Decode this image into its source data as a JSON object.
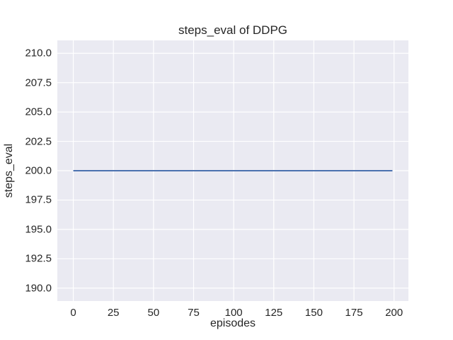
{
  "chart_data": {
    "type": "line",
    "title": "steps_eval of DDPG",
    "xlabel": "episodes",
    "ylabel": "steps_eval",
    "x_ticks": [
      0,
      25,
      50,
      75,
      100,
      125,
      150,
      175,
      200
    ],
    "x_tick_labels": [
      "0",
      "25",
      "50",
      "75",
      "100",
      "125",
      "150",
      "175",
      "200"
    ],
    "y_ticks": [
      190.0,
      192.5,
      195.0,
      197.5,
      200.0,
      202.5,
      205.0,
      207.5,
      210.0
    ],
    "y_tick_labels": [
      "190.0",
      "192.5",
      "195.0",
      "197.5",
      "200.0",
      "202.5",
      "205.0",
      "207.5",
      "210.0"
    ],
    "xlim": [
      -9.95,
      208.95
    ],
    "ylim": [
      188.9,
      211.1
    ],
    "grid": true,
    "legend": false,
    "series": [
      {
        "name": "steps_eval",
        "color": "#4c72b0",
        "x": [
          0,
          199
        ],
        "y": [
          200,
          200
        ]
      }
    ],
    "colors": {
      "plot_background": "#eaeaf2",
      "figure_background": "#ffffff",
      "gridline": "#ffffff",
      "text": "#262626"
    }
  }
}
